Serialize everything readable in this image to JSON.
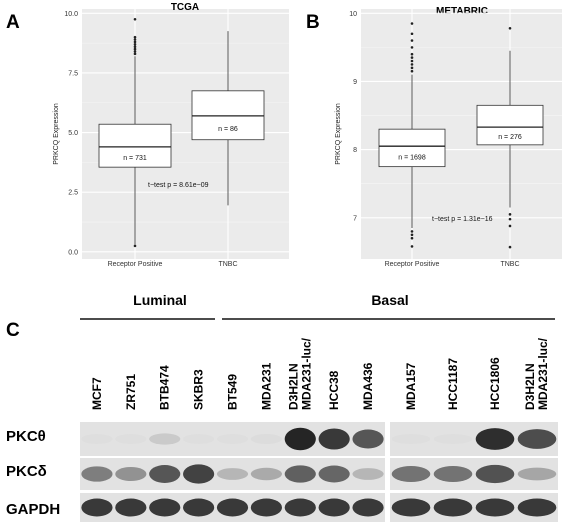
{
  "panel_letters": [
    "A",
    "B",
    "C"
  ],
  "chart_data": [
    {
      "type": "box",
      "title": "TCGA",
      "ylabel": "PRKCQ Expression",
      "ylim": [
        0,
        10
      ],
      "yticks": [
        "0.0",
        "2.5",
        "5.0",
        "7.5",
        "10.0"
      ],
      "categories": [
        "Receptor Positive",
        "TNBC"
      ],
      "boxes": [
        {
          "n_label": "n = 731",
          "min": 0.3,
          "q1": 3.55,
          "median": 4.4,
          "q3": 5.35,
          "max": 8.2,
          "outliers": [
            8.3,
            8.4,
            8.5,
            8.6,
            8.7,
            8.8,
            8.9,
            9.0,
            9.75,
            0.25
          ]
        },
        {
          "n_label": "n = 86",
          "min": 1.95,
          "q1": 4.7,
          "median": 5.7,
          "q3": 6.75,
          "max": 9.25,
          "outliers": []
        }
      ],
      "annotation": "t−test p = 8.61e−09"
    },
    {
      "type": "box",
      "title": "METABRIC",
      "ylabel": "PRKCQ Expression",
      "ylim": [
        6.5,
        10
      ],
      "yticks": [
        "7",
        "8",
        "9",
        "10"
      ],
      "categories": [
        "Receptor Positive",
        "TNBC"
      ],
      "boxes": [
        {
          "n_label": "n = 1698",
          "min": 6.85,
          "q1": 7.75,
          "median": 8.05,
          "q3": 8.3,
          "max": 9.1,
          "outliers": [
            9.15,
            9.2,
            9.25,
            9.3,
            9.35,
            9.4,
            9.5,
            9.6,
            9.7,
            9.85,
            6.8,
            6.75,
            6.7,
            6.58
          ]
        },
        {
          "n_label": "n = 276",
          "min": 7.15,
          "q1": 8.07,
          "median": 8.33,
          "q3": 8.65,
          "max": 9.45,
          "outliers": [
            9.78,
            7.05,
            6.98,
            6.88,
            6.57
          ]
        }
      ],
      "annotation": "t−test p = 1.31e−16"
    }
  ],
  "blot": {
    "groups": [
      "Luminal",
      "Basal"
    ],
    "lanes_left": [
      "MCF7",
      "ZR751",
      "BTB474",
      "SKBR3",
      "BT549",
      "MDA231",
      "MDA231-luc/\nD3H2LN",
      "HCC38",
      "MDA436"
    ],
    "lanes_right": [
      "MDA157",
      "HCC1187",
      "HCC1806",
      "MDA231-luc/\nD3H2LN"
    ],
    "proteins": [
      "PKCθ",
      "PKCδ",
      "GAPDH"
    ],
    "intensity": {
      "PKCθ": [
        0.02,
        0.02,
        0.12,
        0.02,
        0.02,
        0.03,
        0.95,
        0.85,
        0.7,
        0.02,
        0.02,
        0.9,
        0.75
      ],
      "PKCδ": [
        0.5,
        0.4,
        0.7,
        0.8,
        0.22,
        0.28,
        0.65,
        0.62,
        0.22,
        0.55,
        0.55,
        0.72,
        0.3
      ],
      "GAPDH": [
        0.85,
        0.85,
        0.85,
        0.85,
        0.85,
        0.85,
        0.85,
        0.85,
        0.85,
        0.85,
        0.85,
        0.85,
        0.85
      ]
    }
  }
}
